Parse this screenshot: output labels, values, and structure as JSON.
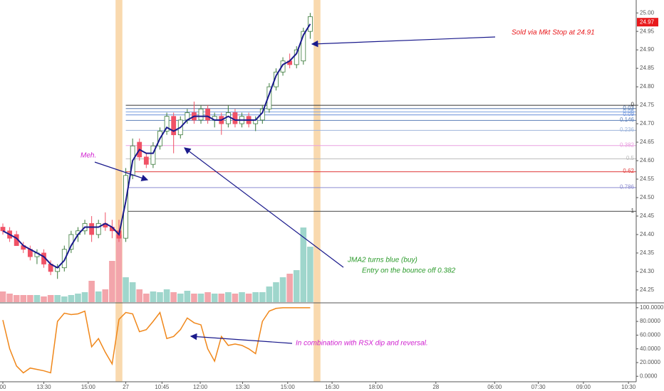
{
  "chart_data": [
    {
      "type": "candlestick",
      "xlim": [
        0,
        92
      ],
      "xticks": [
        {
          "value": 0,
          "label": "00"
        },
        {
          "value": 6,
          "label": "13:30"
        },
        {
          "value": 12.5,
          "label": "15:00"
        },
        {
          "value": 18,
          "label": "27"
        },
        {
          "value": 23.3,
          "label": "10:45"
        },
        {
          "value": 28.9,
          "label": "12:00"
        },
        {
          "value": 35.1,
          "label": "13:30"
        },
        {
          "value": 41.7,
          "label": "15:00"
        },
        {
          "value": 48.2,
          "label": "16:30"
        },
        {
          "value": 54.6,
          "label": "18:00"
        },
        {
          "value": 63.4,
          "label": "28"
        },
        {
          "value": 72,
          "label": "06:00"
        },
        {
          "value": 78.4,
          "label": "07:30"
        },
        {
          "value": 85,
          "label": "09:00"
        },
        {
          "value": 91.6,
          "label": "10:30"
        }
      ],
      "ylim": [
        24.217,
        25.035
      ],
      "yticks": [
        {
          "value": 25.0,
          "label": "25.00"
        },
        {
          "value": 24.95,
          "label": "24.95"
        },
        {
          "value": 24.9,
          "label": "24.90"
        },
        {
          "value": 24.85,
          "label": "24.85"
        },
        {
          "value": 24.8,
          "label": "24.80"
        },
        {
          "value": 24.75,
          "label": "24.75"
        },
        {
          "value": 24.7,
          "label": "24.70"
        },
        {
          "value": 24.65,
          "label": "24.65"
        },
        {
          "value": 24.6,
          "label": "24.60"
        },
        {
          "value": 24.55,
          "label": "24.55"
        },
        {
          "value": 24.5,
          "label": "24.50"
        },
        {
          "value": 24.45,
          "label": "24.45"
        },
        {
          "value": 24.4,
          "label": "24.40"
        },
        {
          "value": 24.35,
          "label": "24.35"
        },
        {
          "value": 24.3,
          "label": "24.30"
        },
        {
          "value": 24.25,
          "label": "24.25"
        }
      ],
      "open": [
        24.42,
        24.41,
        24.4,
        24.37,
        24.36,
        24.34,
        24.35,
        24.32,
        24.3,
        24.31,
        24.36,
        24.4,
        24.41,
        24.43,
        24.4,
        24.43,
        24.42,
        24.41,
        24.39,
        24.56,
        24.65,
        24.61,
        24.59,
        24.64,
        24.68,
        24.72,
        24.67,
        24.71,
        24.73,
        24.71,
        24.74,
        24.71,
        24.72,
        24.7,
        24.73,
        24.7,
        24.72,
        24.7,
        24.71,
        24.74,
        24.8,
        24.84,
        24.87,
        24.86,
        24.87,
        24.95
      ],
      "high": [
        24.43,
        24.42,
        24.41,
        24.38,
        24.37,
        24.36,
        24.36,
        24.33,
        24.32,
        24.37,
        24.41,
        24.42,
        24.44,
        24.45,
        24.44,
        24.46,
        24.44,
        24.44,
        24.58,
        24.66,
        24.66,
        24.62,
        24.65,
        24.69,
        24.73,
        24.73,
        24.72,
        24.74,
        24.76,
        24.75,
        24.75,
        24.73,
        24.73,
        24.75,
        24.74,
        24.73,
        24.73,
        24.72,
        24.75,
        24.81,
        24.85,
        24.88,
        24.89,
        24.91,
        24.96,
        25.0
      ],
      "low": [
        24.4,
        24.38,
        24.37,
        24.35,
        24.33,
        24.32,
        24.31,
        24.29,
        24.28,
        24.3,
        24.35,
        24.38,
        24.4,
        24.38,
        24.39,
        24.41,
        24.39,
        24.38,
        24.38,
        24.55,
        24.6,
        24.58,
        24.58,
        24.63,
        24.67,
        24.62,
        24.66,
        24.7,
        24.7,
        24.7,
        24.7,
        24.69,
        24.67,
        24.69,
        24.69,
        24.69,
        24.69,
        24.68,
        24.7,
        24.73,
        24.79,
        24.83,
        24.85,
        24.85,
        24.86,
        24.93
      ],
      "close": [
        24.41,
        24.39,
        24.37,
        24.36,
        24.34,
        24.35,
        24.32,
        24.3,
        24.31,
        24.36,
        24.4,
        24.41,
        24.43,
        24.4,
        24.43,
        24.42,
        24.41,
        24.39,
        24.56,
        24.64,
        24.61,
        24.59,
        24.64,
        24.68,
        24.72,
        24.67,
        24.71,
        24.73,
        24.71,
        24.74,
        24.71,
        24.72,
        24.7,
        24.73,
        24.7,
        24.72,
        24.7,
        24.71,
        24.74,
        24.8,
        24.84,
        24.87,
        24.86,
        24.9,
        24.95,
        24.99
      ],
      "up_color": "#3a7a3a",
      "down_color": "#f05266",
      "jma": {
        "color": "#1a1a8c",
        "values": [
          24.41,
          24.4,
          24.39,
          24.37,
          24.36,
          24.35,
          24.34,
          24.32,
          24.31,
          24.33,
          24.37,
          24.4,
          24.42,
          24.42,
          24.42,
          24.43,
          24.42,
          24.4,
          24.49,
          24.6,
          24.63,
          24.62,
          24.62,
          24.66,
          24.69,
          24.68,
          24.69,
          24.71,
          24.72,
          24.72,
          24.72,
          24.71,
          24.71,
          24.72,
          24.71,
          24.71,
          24.71,
          24.71,
          24.73,
          24.78,
          24.83,
          24.86,
          24.87,
          24.89,
          24.94,
          24.97
        ]
      },
      "volume": {
        "lim": [
          0,
          425
        ],
        "up_color": "#9fd6cc",
        "down_color": "#f3a5ab",
        "values": [
          15,
          12,
          10,
          10,
          10,
          10,
          8,
          10,
          10,
          8,
          10,
          12,
          14,
          30,
          15,
          18,
          58,
          95,
          35,
          28,
          18,
          12,
          15,
          14,
          18,
          14,
          12,
          16,
          12,
          12,
          14,
          12,
          12,
          14,
          12,
          14,
          12,
          14,
          14,
          22,
          28,
          35,
          40,
          45,
          105,
          78
        ]
      },
      "highlights": [
        17,
        46
      ],
      "highlight_color": "#f7c98b",
      "fib_levels": [
        {
          "label": "1",
          "value": 24.463,
          "color": "#444444"
        },
        {
          "label": "0.786",
          "value": 24.527,
          "color": "#8c8cd0"
        },
        {
          "label": "0.62",
          "value": 24.57,
          "color": "#e03c3c"
        },
        {
          "label": "0.5",
          "value": 24.605,
          "color": "#bbbbbb"
        },
        {
          "label": "0.382",
          "value": 24.641,
          "color": "#e9a0e0"
        },
        {
          "label": "0.236",
          "value": 24.682,
          "color": "#9fb6dc"
        },
        {
          "label": "0.146",
          "value": 24.709,
          "color": "#5c7fb8"
        },
        {
          "label": "0.09",
          "value": 24.724,
          "color": "#6a8fd8"
        },
        {
          "label": "0.06",
          "value": 24.732,
          "color": "#7aa0e0"
        },
        {
          "label": "0.03",
          "value": 24.741,
          "color": "#5577aa"
        },
        {
          "label": "0",
          "value": 24.75,
          "color": "#333333"
        }
      ],
      "fib_start": 18,
      "last_price": {
        "value": 24.975,
        "label": "24.97",
        "color": "#e8191c"
      },
      "annotations": [
        "Sold via Mkt Stop at 24.91",
        "Meh.",
        "JMA2 turns blue (buy)",
        "Entry on the bounce off 0.382"
      ]
    },
    {
      "type": "line",
      "ylim": [
        -8,
        105
      ],
      "yticks": [
        {
          "value": 100,
          "label": "100.0000"
        },
        {
          "value": 80,
          "label": "80.0000"
        },
        {
          "value": 60,
          "label": "60.0000"
        },
        {
          "value": 40,
          "label": "40.0000"
        },
        {
          "value": 20,
          "label": "20.0000"
        },
        {
          "value": 0,
          "label": "0.0000"
        }
      ],
      "series": [
        {
          "color": "#f0871a",
          "values": [
            82,
            40,
            15,
            5,
            12,
            10,
            8,
            5,
            80,
            92,
            90,
            91,
            95,
            43,
            55,
            35,
            18,
            83,
            93,
            91,
            65,
            68,
            80,
            93,
            55,
            58,
            68,
            85,
            78,
            75,
            40,
            22,
            58,
            45,
            47,
            45,
            40,
            33,
            80,
            95,
            99,
            100,
            100,
            100,
            100,
            100
          ]
        }
      ],
      "annotations": [
        "In combination with RSX dip and reversal."
      ]
    }
  ]
}
